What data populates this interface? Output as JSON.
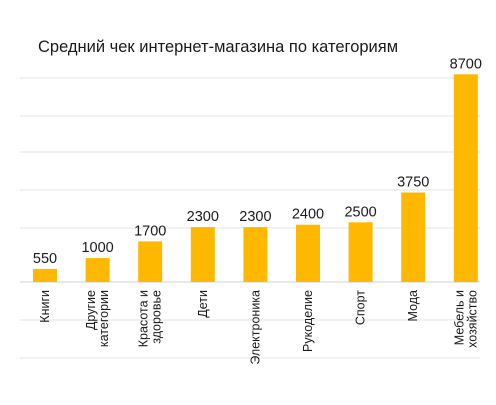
{
  "chart_data": {
    "type": "bar",
    "title": "Средний чек интернет-магазина по категориям",
    "categories": [
      [
        "Книги"
      ],
      [
        "Другие",
        "категории"
      ],
      [
        "Красота и",
        "здоровье"
      ],
      [
        "Дети"
      ],
      [
        "Электроника"
      ],
      [
        "Рукоделие"
      ],
      [
        "Спорт"
      ],
      [
        "Мода"
      ],
      [
        "Мебель и",
        "хозяйство"
      ]
    ],
    "values": [
      550,
      1000,
      1700,
      2300,
      2300,
      2400,
      2500,
      3750,
      8700
    ],
    "value_labels": [
      "550",
      "1000",
      "1700",
      "2300",
      "2300",
      "2400",
      "2500",
      "3750",
      "8700"
    ],
    "xlabel": "",
    "ylabel": "",
    "ylim": [
      0,
      9300
    ],
    "grid": true,
    "legend": "none",
    "bar_color": "#FFB800",
    "grid_color": "#E6E6E6",
    "text_color": "#1A1A1A"
  }
}
